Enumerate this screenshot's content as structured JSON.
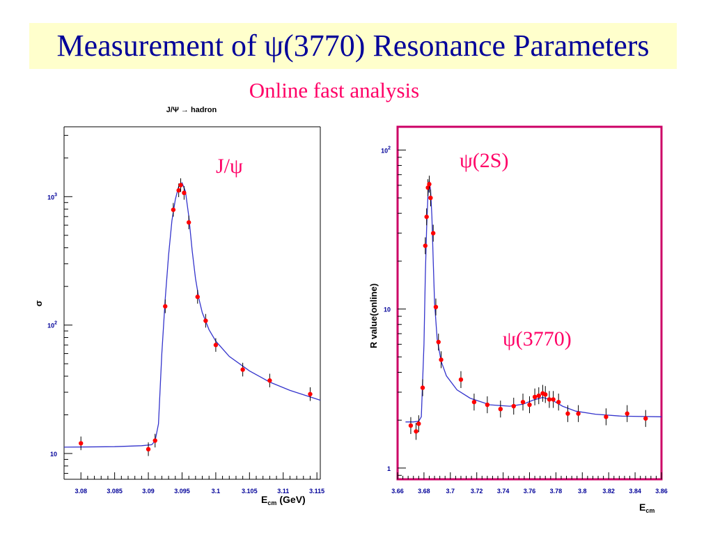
{
  "slide": {
    "title": "Measurement of ψ(3770) Resonance Parameters",
    "subtitle": "Online fast analysis",
    "title_color": "#000099",
    "subtitle_color": "#ff0066",
    "title_bg": "#ffffcc"
  },
  "chart_data": [
    {
      "type": "scatter",
      "title": "J/Ψ → hadron",
      "annotation": "J/ψ",
      "ylabel": "σ",
      "xlabel": "E",
      "xlabel_sub": "cm",
      "xlabel_unit": "(GeV)",
      "xscale": "linear",
      "yscale": "log",
      "xlim": [
        3.0775,
        3.1155
      ],
      "ylim": [
        6.3,
        3500
      ],
      "x_ticks": [
        3.08,
        3.085,
        3.09,
        3.095,
        3.1,
        3.105,
        3.11,
        3.115
      ],
      "x_tick_labels": [
        "3.08",
        "3.085",
        "3.09",
        "3.095",
        "3.1",
        "3.105",
        "3.11",
        "3.115"
      ],
      "y_ticks": [
        10,
        100,
        1000
      ],
      "y_tick_base": [
        "10",
        "10",
        "10"
      ],
      "y_tick_exp": [
        "",
        "2",
        "3"
      ],
      "series": [
        {
          "marker_color": "#ff0000",
          "points": [
            {
              "x": 3.08,
              "y": 12.0
            },
            {
              "x": 3.09,
              "y": 10.8
            },
            {
              "x": 3.091,
              "y": 12.6
            },
            {
              "x": 3.0925,
              "y": 140
            },
            {
              "x": 3.0937,
              "y": 790
            },
            {
              "x": 3.0945,
              "y": 1120
            },
            {
              "x": 3.0948,
              "y": 1230
            },
            {
              "x": 3.0953,
              "y": 1070
            },
            {
              "x": 3.096,
              "y": 630
            },
            {
              "x": 3.0973,
              "y": 166
            },
            {
              "x": 3.0985,
              "y": 108
            },
            {
              "x": 3.1,
              "y": 70
            },
            {
              "x": 3.104,
              "y": 45
            },
            {
              "x": 3.108,
              "y": 37
            },
            {
              "x": 3.114,
              "y": 29
            }
          ]
        }
      ],
      "fit_color": "#3333cc",
      "fit_curve": [
        [
          3.0775,
          11.2
        ],
        [
          3.085,
          11.3
        ],
        [
          3.089,
          11.5
        ],
        [
          3.0905,
          11.7
        ],
        [
          3.091,
          12.5
        ],
        [
          3.0915,
          17
        ],
        [
          3.092,
          60
        ],
        [
          3.0925,
          160
        ],
        [
          3.093,
          350
        ],
        [
          3.0935,
          650
        ],
        [
          3.094,
          950
        ],
        [
          3.0945,
          1200
        ],
        [
          3.095,
          1280
        ],
        [
          3.0955,
          1100
        ],
        [
          3.096,
          700
        ],
        [
          3.0965,
          380
        ],
        [
          3.097,
          230
        ],
        [
          3.0975,
          160
        ],
        [
          3.098,
          125
        ],
        [
          3.099,
          92
        ],
        [
          3.1,
          75
        ],
        [
          3.102,
          57
        ],
        [
          3.105,
          44
        ],
        [
          3.108,
          36
        ],
        [
          3.111,
          31
        ],
        [
          3.1155,
          26
        ]
      ]
    },
    {
      "type": "scatter",
      "title": "",
      "annotations": [
        "ψ(2S)",
        "ψ(3770)"
      ],
      "ylabel": "R value(online)",
      "xlabel": "E",
      "xlabel_sub": "cm",
      "xscale": "linear",
      "yscale": "log",
      "xlim": [
        3.66,
        3.86
      ],
      "ylim": [
        0.85,
        140
      ],
      "frame_color": "#cc0066",
      "x_ticks": [
        3.66,
        3.68,
        3.7,
        3.72,
        3.74,
        3.76,
        3.78,
        3.8,
        3.82,
        3.84,
        3.86
      ],
      "x_tick_labels": [
        "3.66",
        "3.68",
        "3.7",
        "3.72",
        "3.74",
        "3.76",
        "3.78",
        "3.8",
        "3.82",
        "3.84",
        "3.86"
      ],
      "y_ticks": [
        1,
        10,
        100
      ],
      "y_tick_base": [
        "1",
        "10",
        "10"
      ],
      "y_tick_exp": [
        "",
        "",
        "2"
      ],
      "series": [
        {
          "marker_color": "#ff0000",
          "points": [
            {
              "x": 3.67,
              "y": 1.85
            },
            {
              "x": 3.674,
              "y": 1.7
            },
            {
              "x": 3.676,
              "y": 1.9
            },
            {
              "x": 3.679,
              "y": 3.2
            },
            {
              "x": 3.681,
              "y": 25.0
            },
            {
              "x": 3.682,
              "y": 38.0
            },
            {
              "x": 3.683,
              "y": 58.0
            },
            {
              "x": 3.684,
              "y": 61.0
            },
            {
              "x": 3.685,
              "y": 50.0
            },
            {
              "x": 3.687,
              "y": 30.0
            },
            {
              "x": 3.689,
              "y": 10.3
            },
            {
              "x": 3.691,
              "y": 6.2
            },
            {
              "x": 3.693,
              "y": 4.8
            },
            {
              "x": 3.708,
              "y": 3.6
            },
            {
              "x": 3.718,
              "y": 2.6
            },
            {
              "x": 3.728,
              "y": 2.5
            },
            {
              "x": 3.738,
              "y": 2.35
            },
            {
              "x": 3.748,
              "y": 2.45
            },
            {
              "x": 3.755,
              "y": 2.6
            },
            {
              "x": 3.76,
              "y": 2.5
            },
            {
              "x": 3.764,
              "y": 2.8
            },
            {
              "x": 3.767,
              "y": 2.85
            },
            {
              "x": 3.77,
              "y": 2.95
            },
            {
              "x": 3.772,
              "y": 2.9
            },
            {
              "x": 3.775,
              "y": 2.7
            },
            {
              "x": 3.778,
              "y": 2.7
            },
            {
              "x": 3.782,
              "y": 2.6
            },
            {
              "x": 3.789,
              "y": 2.2
            },
            {
              "x": 3.797,
              "y": 2.2
            },
            {
              "x": 3.818,
              "y": 2.1
            },
            {
              "x": 3.834,
              "y": 2.2
            },
            {
              "x": 3.848,
              "y": 2.05
            }
          ]
        }
      ],
      "fit_color": "#3333cc",
      "fit_curve": [
        [
          3.666,
          1.95
        ],
        [
          3.672,
          1.95
        ],
        [
          3.676,
          1.97
        ],
        [
          3.678,
          2.1
        ],
        [
          3.68,
          6.0
        ],
        [
          3.681,
          16
        ],
        [
          3.682,
          32
        ],
        [
          3.683,
          52
        ],
        [
          3.684,
          64
        ],
        [
          3.685,
          56
        ],
        [
          3.686,
          38
        ],
        [
          3.687,
          20
        ],
        [
          3.688,
          11
        ],
        [
          3.69,
          6.5
        ],
        [
          3.693,
          4.7
        ],
        [
          3.697,
          3.8
        ],
        [
          3.705,
          3.1
        ],
        [
          3.715,
          2.75
        ],
        [
          3.73,
          2.5
        ],
        [
          3.745,
          2.45
        ],
        [
          3.755,
          2.52
        ],
        [
          3.763,
          2.68
        ],
        [
          3.77,
          2.78
        ],
        [
          3.777,
          2.68
        ],
        [
          3.785,
          2.45
        ],
        [
          3.795,
          2.28
        ],
        [
          3.81,
          2.18
        ],
        [
          3.83,
          2.12
        ],
        [
          3.86,
          2.1
        ]
      ]
    }
  ]
}
